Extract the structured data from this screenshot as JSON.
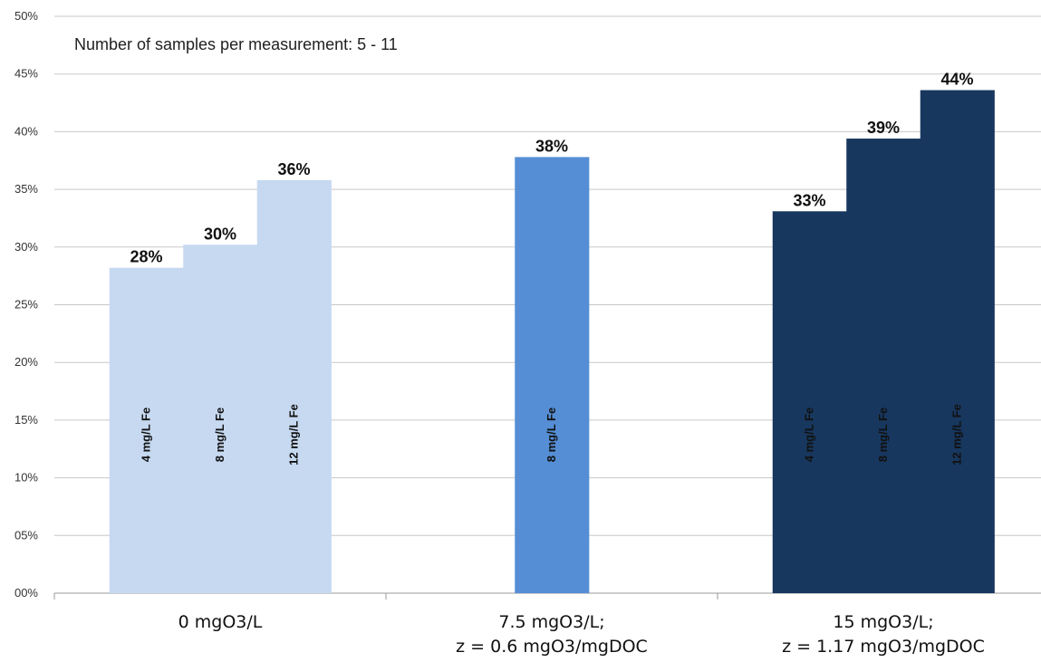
{
  "chart_data": {
    "type": "bar",
    "annotation": "Number of samples per measurement: 5 - 11",
    "ylim": [
      0,
      50
    ],
    "yticks": [
      "00%",
      "05%",
      "10%",
      "15%",
      "20%",
      "25%",
      "30%",
      "35%",
      "40%",
      "45%",
      "50%"
    ],
    "grid": true,
    "legend": "none",
    "groups": [
      {
        "label_lines": [
          "0 mgO3/L"
        ],
        "color": "#c6d9f1",
        "bars": [
          {
            "inner_label": "4 mg/L Fe",
            "value": 28.2,
            "value_label": "28%"
          },
          {
            "inner_label": "8 mg/L Fe",
            "value": 30.2,
            "value_label": "30%"
          },
          {
            "inner_label": "12 mg/L Fe",
            "value": 35.8,
            "value_label": "36%"
          }
        ]
      },
      {
        "label_lines": [
          "7.5 mgO3/L;",
          "z = 0.6 mgO3/mgDOC"
        ],
        "color": "#558ed5",
        "bars": [
          {
            "inner_label": "8 mg/L Fe",
            "value": 37.8,
            "value_label": "38%"
          }
        ]
      },
      {
        "label_lines": [
          "15 mgO3/L;",
          "z = 1.17 mgO3/mgDOC"
        ],
        "color": "#17375e",
        "bars": [
          {
            "inner_label": "4 mg/L Fe",
            "value": 33.1,
            "value_label": "33%"
          },
          {
            "inner_label": "8 mg/L Fe",
            "value": 39.4,
            "value_label": "39%"
          },
          {
            "inner_label": "12 mg/L Fe",
            "value": 43.6,
            "value_label": "44%"
          }
        ]
      }
    ]
  }
}
